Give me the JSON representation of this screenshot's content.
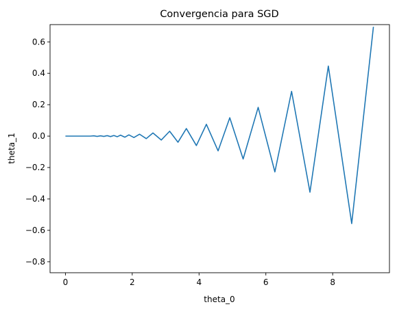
{
  "chart_data": {
    "type": "line",
    "title": "Convergencia para SGD",
    "xlabel": "theta_0",
    "ylabel": "theta_1",
    "xlim": [
      -0.46,
      9.7
    ],
    "ylim": [
      -0.87,
      0.71
    ],
    "xticks": [
      0,
      2,
      4,
      6,
      8
    ],
    "yticks": [
      -0.8,
      -0.6,
      -0.4,
      -0.2,
      0.0,
      0.2,
      0.4,
      0.6
    ],
    "xtick_labels": [
      "0",
      "2",
      "4",
      "6",
      "8"
    ],
    "ytick_labels": [
      "−0.8",
      "−0.6",
      "−0.4",
      "−0.2",
      "0.0",
      "0.2",
      "0.4",
      "0.6"
    ],
    "grid": false,
    "series": [
      {
        "color": "#1f77b4",
        "x": [
          0.0,
          0.5,
          0.75,
          0.85,
          0.95,
          1.05,
          1.15,
          1.25,
          1.35,
          1.45,
          1.55,
          1.65,
          1.78,
          1.9,
          2.05,
          2.22,
          2.42,
          2.62,
          2.87,
          3.12,
          3.37,
          3.62,
          3.92,
          4.22,
          4.57,
          4.92,
          5.32,
          5.77,
          6.27,
          6.77,
          7.32,
          7.87,
          8.57,
          9.22
        ],
        "y": [
          0.0,
          0.0,
          0.0,
          0.002,
          -0.002,
          0.002,
          -0.002,
          0.003,
          -0.003,
          0.004,
          -0.004,
          0.006,
          -0.007,
          0.008,
          -0.009,
          0.012,
          -0.016,
          0.02,
          -0.025,
          0.031,
          -0.039,
          0.048,
          -0.06,
          0.075,
          -0.094,
          0.117,
          -0.146,
          0.183,
          -0.228,
          0.285,
          -0.357,
          0.446,
          -0.557,
          0.696
        ]
      }
    ]
  }
}
